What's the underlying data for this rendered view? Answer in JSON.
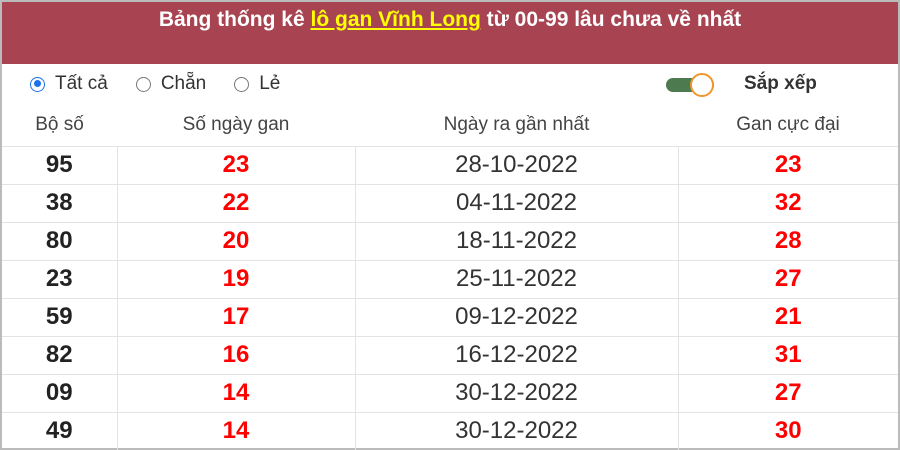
{
  "title": {
    "prefix": "Bảng thống kê ",
    "link": "lô gan Vĩnh Long",
    "suffix": " từ 00-99 lâu chưa về nhất"
  },
  "filters": {
    "all": "Tất cả",
    "even": "Chẵn",
    "odd": "Lẻ",
    "selected": "all",
    "sort_label": "Sắp xếp",
    "sort_on": true
  },
  "colors": {
    "header_bg": "#a84452",
    "link": "#ffff00",
    "value": "#ff0000",
    "toggle": "#4e7a4f"
  },
  "table": {
    "headers": [
      "Bộ số",
      "Số ngày gan",
      "Ngày ra gần nhất",
      "Gan cực đại"
    ],
    "rows": [
      [
        "95",
        "23",
        "28-10-2022",
        "23"
      ],
      [
        "38",
        "22",
        "04-11-2022",
        "32"
      ],
      [
        "80",
        "20",
        "18-11-2022",
        "28"
      ],
      [
        "23",
        "19",
        "25-11-2022",
        "27"
      ],
      [
        "59",
        "17",
        "09-12-2022",
        "21"
      ],
      [
        "82",
        "16",
        "16-12-2022",
        "31"
      ],
      [
        "09",
        "14",
        "30-12-2022",
        "27"
      ],
      [
        "49",
        "14",
        "30-12-2022",
        "30"
      ]
    ]
  }
}
